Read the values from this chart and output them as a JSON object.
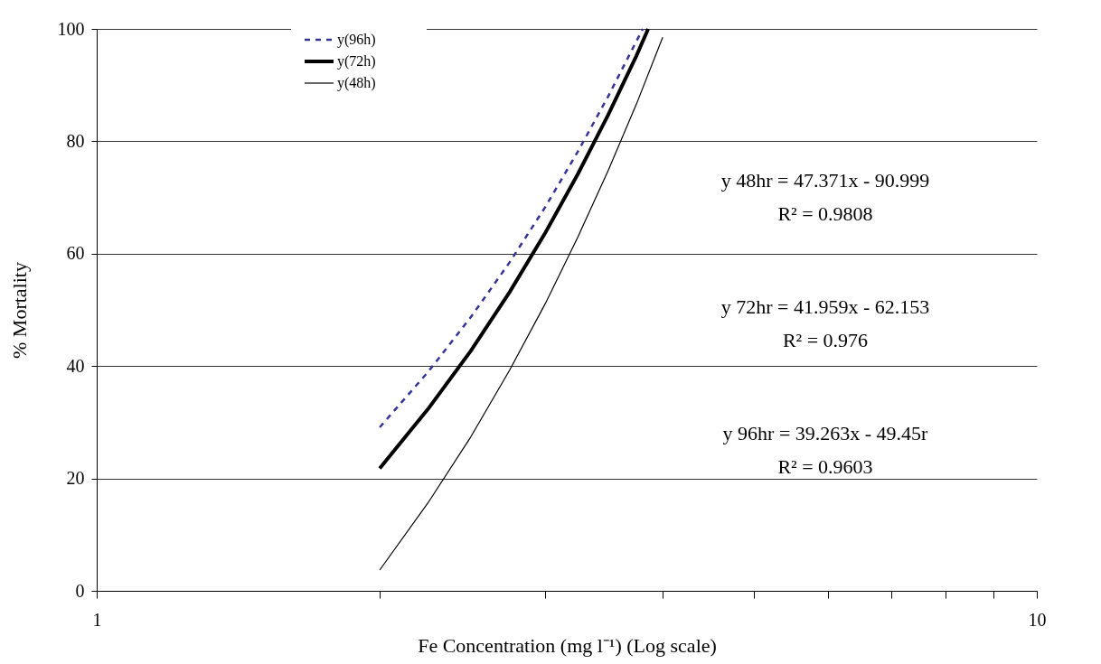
{
  "chart_data": {
    "type": "line",
    "xlabel": "Fe Concentration (mg l⁻¹) (Log scale)",
    "ylabel": "% Mortality",
    "log": "x",
    "xlim": [
      1,
      10
    ],
    "xticks": [
      1,
      {
        "value": 2,
        "label": null
      },
      {
        "value": 3,
        "label": null
      },
      {
        "value": 4,
        "label": null
      },
      {
        "value": 5,
        "label": null
      },
      {
        "value": 6,
        "label": null
      },
      {
        "value": 7,
        "label": null
      },
      {
        "value": 8,
        "label": null
      },
      {
        "value": 9,
        "label": null
      },
      10
    ],
    "ylim": [
      0,
      100
    ],
    "yticks": [
      0,
      20,
      40,
      60,
      80,
      100
    ],
    "grid": "y",
    "legend": "top left",
    "marker": "none",
    "series": [
      {
        "name": "y(96h)",
        "color": "#333399",
        "line_style": "dashed",
        "x": [
          2,
          2.25,
          2.5,
          2.75,
          3,
          3.25,
          3.5,
          3.75,
          3.81
        ],
        "values": [
          29.1,
          38.9,
          48.7,
          58.5,
          68.3,
          78.2,
          88.0,
          97.8,
          100
        ]
      },
      {
        "name": "y(72h)",
        "color": "#000000",
        "line_style": "solid",
        "x": [
          2,
          2.25,
          2.5,
          2.75,
          3,
          3.25,
          3.5,
          3.75,
          3.86
        ],
        "values": [
          21.8,
          32.3,
          42.7,
          53.2,
          63.7,
          74.2,
          84.7,
          95.2,
          100
        ]
      },
      {
        "name": "y(48h)",
        "color": "#000000",
        "line_style": "solid",
        "x": [
          2,
          2.25,
          2.5,
          2.75,
          3,
          3.25,
          3.5,
          3.75,
          4
        ],
        "values": [
          3.7,
          15.6,
          27.4,
          39.3,
          51.1,
          63.0,
          74.8,
          86.6,
          98.5
        ]
      }
    ],
    "annotations": [
      "y 48hr = 47.371x - 90.999",
      "R² = 0.9808",
      "y 72hr = 41.959x - 62.153",
      "R² = 0.976",
      "y 96hr = 39.263x - 49.45r",
      "R² = 0.9603"
    ]
  }
}
